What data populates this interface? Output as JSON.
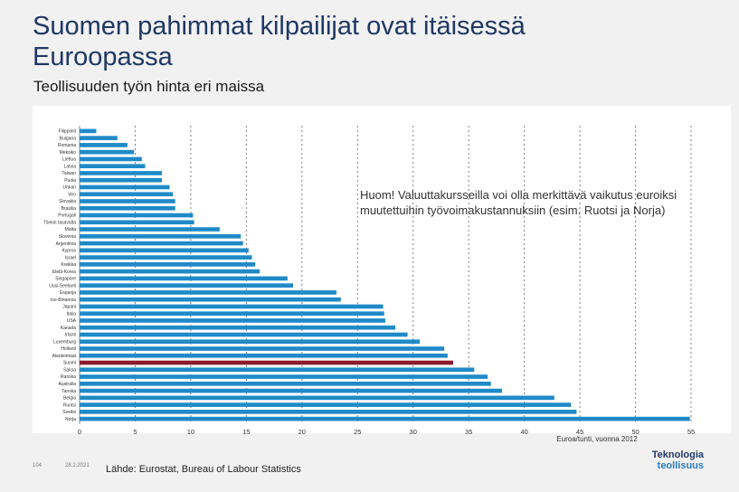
{
  "slide": {
    "title": "Suomen pahimmat kilpailijat ovat itäisessä Euroopassa",
    "subtitle": "Teollisuuden työn hinta eri maissa",
    "note": "Huom! Valuuttakursseilla voi olla merkittävä vaikutus euroiksi muutettuihin työvoimakustannuksiin (esim. Ruotsi ja Norja)",
    "source": "Lähde: Eurostat, Bureau of Labour Statistics",
    "footer_page": "104",
    "footer_date": "28.2.2021",
    "logo_top": "Teknologia",
    "logo_bottom": "teollisuus"
  },
  "colors": {
    "bar": "#1f8ac8",
    "highlight": "#8b1a2a",
    "title": "#1f3864",
    "background": "#f1f1f1"
  },
  "chart_data": {
    "type": "bar",
    "orientation": "horizontal",
    "xlabel": "Euroa/tunti, vuonna 2012",
    "xlim": [
      0,
      55
    ],
    "xticks": [
      0,
      5,
      10,
      15,
      20,
      25,
      30,
      35,
      40,
      45,
      50,
      55
    ],
    "grid": "vertical dashed",
    "highlight_category": "Suomi",
    "categories": [
      "Filippiinit",
      "Bulgaria",
      "Romania",
      "Meksiko",
      "Liettua",
      "Latvia",
      "Taiwan",
      "Puola",
      "Unkari",
      "Viro",
      "Slovakia",
      "Brasilia",
      "Portugali",
      "Tšekin tasavalta",
      "Malta",
      "Slovenia",
      "Argentiina",
      "Kypros",
      "Israel",
      "Kreikka",
      "Etelä-Korea",
      "Singapore",
      "Uusi-Seelanti",
      "Espanja",
      "Iso-Britannia",
      "Japani",
      "Italia",
      "USA",
      "Kanada",
      "Irlanti",
      "Luxemburg",
      "Hollanti",
      "Alankomaat",
      "Suomi",
      "Saksa",
      "Ranska",
      "Australia",
      "Tanska",
      "Belgia",
      "Ruotsi",
      "Sveitsi",
      "Norja"
    ],
    "values": [
      1.5,
      3.4,
      4.3,
      4.9,
      5.6,
      5.9,
      7.4,
      7.4,
      8.1,
      8.4,
      8.6,
      8.6,
      10.2,
      10.3,
      12.6,
      14.5,
      14.7,
      15.2,
      15.5,
      15.8,
      16.2,
      18.7,
      19.2,
      23.1,
      23.5,
      27.3,
      27.4,
      27.5,
      28.4,
      29.5,
      30.6,
      32.8,
      33.1,
      33.6,
      35.5,
      36.7,
      37.0,
      38.0,
      42.7,
      44.2,
      44.7,
      54.9
    ]
  }
}
